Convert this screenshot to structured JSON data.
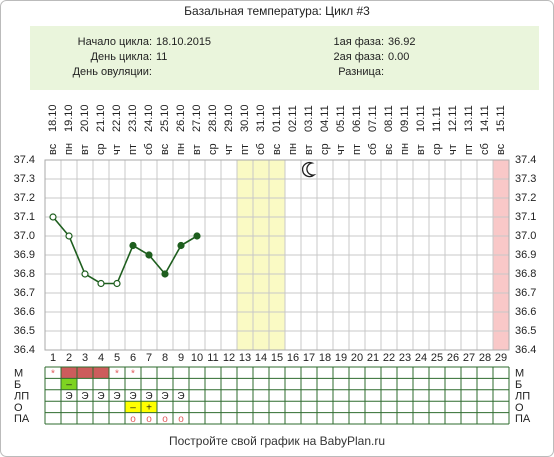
{
  "chart_data": {
    "type": "line",
    "title": "Базальная температура: Цикл #3",
    "info_left": [
      {
        "label": "Начало цикла:",
        "value": "18.10.2015"
      },
      {
        "label": "День цикла:",
        "value": "11"
      },
      {
        "label": "День овуляции:"
      }
    ],
    "info_right": [
      {
        "label": "1ая фаза:",
        "value": "36.92"
      },
      {
        "label": "2ая фаза:",
        "value": "0.00"
      },
      {
        "label": "Разница:"
      }
    ],
    "categories": [
      "18.10",
      "19.10",
      "20.10",
      "21.10",
      "22.10",
      "23.10",
      "24.10",
      "25.10",
      "26.10",
      "27.10",
      "28.10",
      "29.10",
      "30.10",
      "31.10",
      "01.11",
      "02.11",
      "03.11",
      "04.11",
      "05.11",
      "06.11",
      "07.11",
      "08.11",
      "09.11",
      "10.11",
      "11.11",
      "12.11",
      "13.11",
      "14.11",
      "15.11"
    ],
    "weekdays": [
      "вс",
      "пн",
      "вт",
      "ср",
      "чт",
      "пт",
      "сб",
      "вс",
      "пн",
      "вт",
      "ср",
      "чт",
      "пт",
      "сб",
      "вс",
      "пн",
      "вт",
      "ср",
      "чт",
      "пт",
      "сб",
      "вс",
      "пн",
      "вт",
      "ср",
      "чт",
      "пт",
      "сб",
      "вс"
    ],
    "days": [
      1,
      2,
      3,
      4,
      5,
      6,
      7,
      8,
      9,
      10,
      11,
      12,
      13,
      14,
      15,
      16,
      17,
      18,
      19,
      20,
      21,
      22,
      23,
      24,
      25,
      26,
      27,
      28,
      29
    ],
    "series": [
      {
        "color": "#1e5e1e",
        "values": [
          37.1,
          37.0,
          36.8,
          36.75,
          36.75,
          36.95,
          36.9,
          36.8,
          36.95,
          37.0,
          null,
          null,
          null,
          null,
          null,
          null,
          null,
          null,
          null,
          null,
          null,
          null,
          null,
          null,
          null,
          null,
          null,
          null,
          null
        ],
        "filled": [
          false,
          false,
          false,
          false,
          false,
          true,
          true,
          true,
          true,
          true,
          false,
          false,
          false,
          false,
          false,
          false,
          false,
          false,
          false,
          false,
          false,
          false,
          false,
          false,
          false,
          false,
          false,
          false,
          false
        ]
      }
    ],
    "ylim": [
      36.4,
      37.4
    ],
    "yticks": [
      36.4,
      36.5,
      36.6,
      36.7,
      36.8,
      36.9,
      {
        "value": 37,
        "label": "37.0"
      },
      37.1,
      37.2,
      37.3,
      37.4
    ],
    "grid": true,
    "bands": [
      {
        "from": 13,
        "to": 15,
        "color": "#fafac4"
      },
      {
        "from": 29,
        "to": 29,
        "color": "#f9c8c8"
      }
    ],
    "moon_day": 17,
    "table": {
      "row_labels": [
        "М",
        "Б",
        "ЛП",
        "О",
        "ПА"
      ],
      "rows": [
        {
          "1": {
            "text": "*",
            "color": "#e05a5a"
          },
          "2": {
            "fill": "#cd5c5c"
          },
          "3": {
            "fill": "#cd5c5c"
          },
          "4": {
            "fill": "#cd5c5c"
          },
          "5": {
            "text": "*",
            "color": "#e05a5a"
          },
          "6": {
            "text": "*",
            "color": "#e05a5a"
          }
        },
        {
          "2": {
            "text": "–",
            "fill": "#7ed321"
          }
        },
        {
          "2": {
            "text": "Э"
          },
          "3": {
            "text": "Э"
          },
          "4": {
            "text": "Э"
          },
          "5": {
            "text": "Э"
          },
          "6": {
            "text": "Э"
          },
          "7": {
            "text": "Э"
          },
          "8": {
            "text": "Э"
          },
          "9": {
            "text": "Э"
          }
        },
        {
          "6": {
            "text": "–",
            "fill": "#ffff00"
          },
          "7": {
            "text": "+",
            "fill": "#ffff00"
          }
        },
        {
          "6": {
            "text": "о",
            "color": "#e05a5a"
          },
          "7": {
            "text": "о",
            "color": "#e05a5a"
          },
          "8": {
            "text": "о",
            "color": "#e05a5a"
          },
          "9": {
            "text": "о",
            "color": "#e05a5a"
          }
        }
      ]
    },
    "footer": "Постройте свой график на BabyPlan.ru"
  }
}
